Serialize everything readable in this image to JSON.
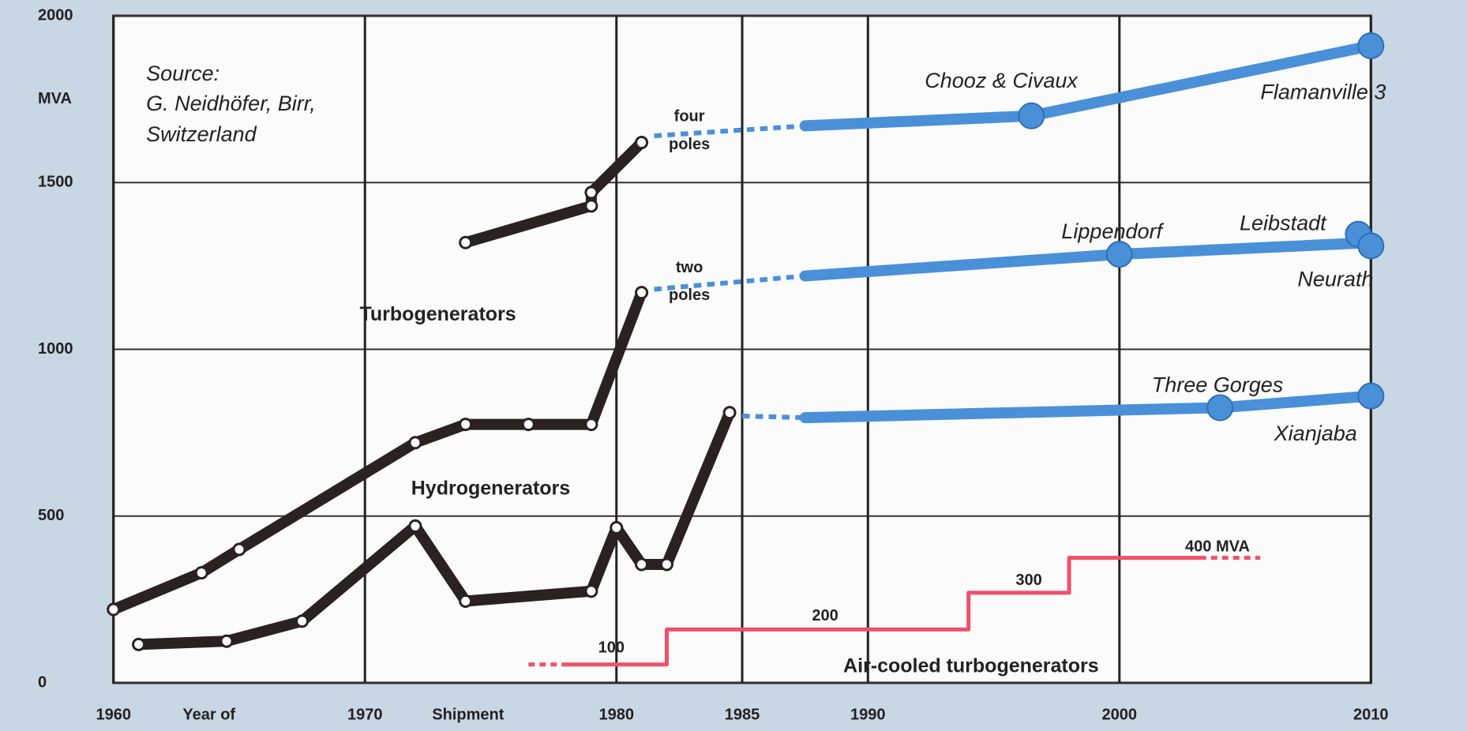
{
  "chart_data": {
    "type": "line",
    "ylabel": "MVA",
    "xlabel_parts": [
      "Year of",
      "Shipment"
    ],
    "xlim": [
      1958,
      2012
    ],
    "ylim": [
      0,
      2000
    ],
    "xticks": [
      1960,
      1970,
      1980,
      1985,
      1990,
      2000,
      2010
    ],
    "yticks": [
      0,
      500,
      1000,
      1500,
      2000
    ],
    "grid": true,
    "legend": false,
    "annotations": [
      "Source:",
      "G. Neidhöfer, Birr,",
      "Switzerland",
      "Turbogenerators",
      "Hydrogenerators",
      "four",
      "poles",
      "two",
      "poles",
      "Chooz & Civaux",
      "Flamanville 3",
      "Lippendorf",
      "Leibstadt",
      "Neurath",
      "Three Gorges",
      "Xianjaba",
      "Air-cooled  turbogenerators",
      "100",
      "200",
      "300",
      "400 MVA"
    ],
    "series": [
      {
        "color": "#2a2222",
        "width": 14,
        "markers": true,
        "x": [
          1974,
          1979,
          1979,
          1981
        ],
        "values": [
          1320,
          1430,
          1470,
          1620
        ]
      },
      {
        "color": "#2a2222",
        "width": 14,
        "markers": true,
        "x": [
          1960,
          1963.5,
          1965,
          1972,
          1974,
          1976.5,
          1979,
          1981
        ],
        "values": [
          220,
          330,
          400,
          720,
          775,
          775,
          775,
          1170
        ]
      },
      {
        "color": "#2a2222",
        "width": 14,
        "markers": true,
        "x": [
          1961,
          1964.5,
          1967.5,
          1972,
          1974,
          1979,
          1980,
          1981,
          1982,
          1984.5
        ],
        "values": [
          115,
          125,
          185,
          470,
          245,
          275,
          465,
          355,
          355,
          810
        ]
      },
      {
        "color": "#4a90d9",
        "width": 6,
        "dash": true,
        "x": [
          1981.5,
          1987.5
        ],
        "values": [
          1640,
          1670
        ]
      },
      {
        "color": "#4a90d9",
        "width": 14,
        "x": [
          1987.5,
          1996.5,
          2010
        ],
        "values": [
          1670,
          1700,
          1910
        ]
      },
      {
        "color": "#4a90d9",
        "line": false,
        "markers": true,
        "x": [
          1996.5,
          2010
        ],
        "values": [
          1700,
          1910
        ]
      },
      {
        "color": "#4a90d9",
        "width": 6,
        "dash": true,
        "x": [
          1981.5,
          1987.5
        ],
        "values": [
          1180,
          1220
        ]
      },
      {
        "color": "#4a90d9",
        "width": 14,
        "x": [
          1987.5,
          2000,
          2010
        ],
        "values": [
          1220,
          1285,
          1320
        ]
      },
      {
        "color": "#4a90d9",
        "line": false,
        "markers": true,
        "x": [
          2000,
          2009.5,
          2010
        ],
        "values": [
          1285,
          1345,
          1310
        ]
      },
      {
        "color": "#4a90d9",
        "width": 6,
        "dash": true,
        "x": [
          1985,
          1987.5
        ],
        "values": [
          800,
          795
        ]
      },
      {
        "color": "#4a90d9",
        "width": 14,
        "x": [
          1987.5,
          2004,
          2010
        ],
        "values": [
          795,
          825,
          860
        ]
      },
      {
        "color": "#4a90d9",
        "line": false,
        "markers": true,
        "x": [
          2004,
          2010
        ],
        "values": [
          825,
          860
        ]
      },
      {
        "color": "#f0506a",
        "width": 5,
        "dash": true,
        "x": [
          1976.5,
          1978
        ],
        "values": [
          55,
          55
        ]
      },
      {
        "color": "#f0506a",
        "width": 5,
        "x": [
          1978,
          1982,
          1982,
          1994,
          1994,
          1998,
          1998,
          2003.2
        ],
        "values": [
          55,
          55,
          160,
          160,
          270,
          270,
          375,
          375
        ]
      },
      {
        "color": "#f0506a",
        "width": 5,
        "dash": true,
        "x": [
          2003.2,
          2005.6
        ],
        "values": [
          375,
          375
        ]
      }
    ]
  }
}
